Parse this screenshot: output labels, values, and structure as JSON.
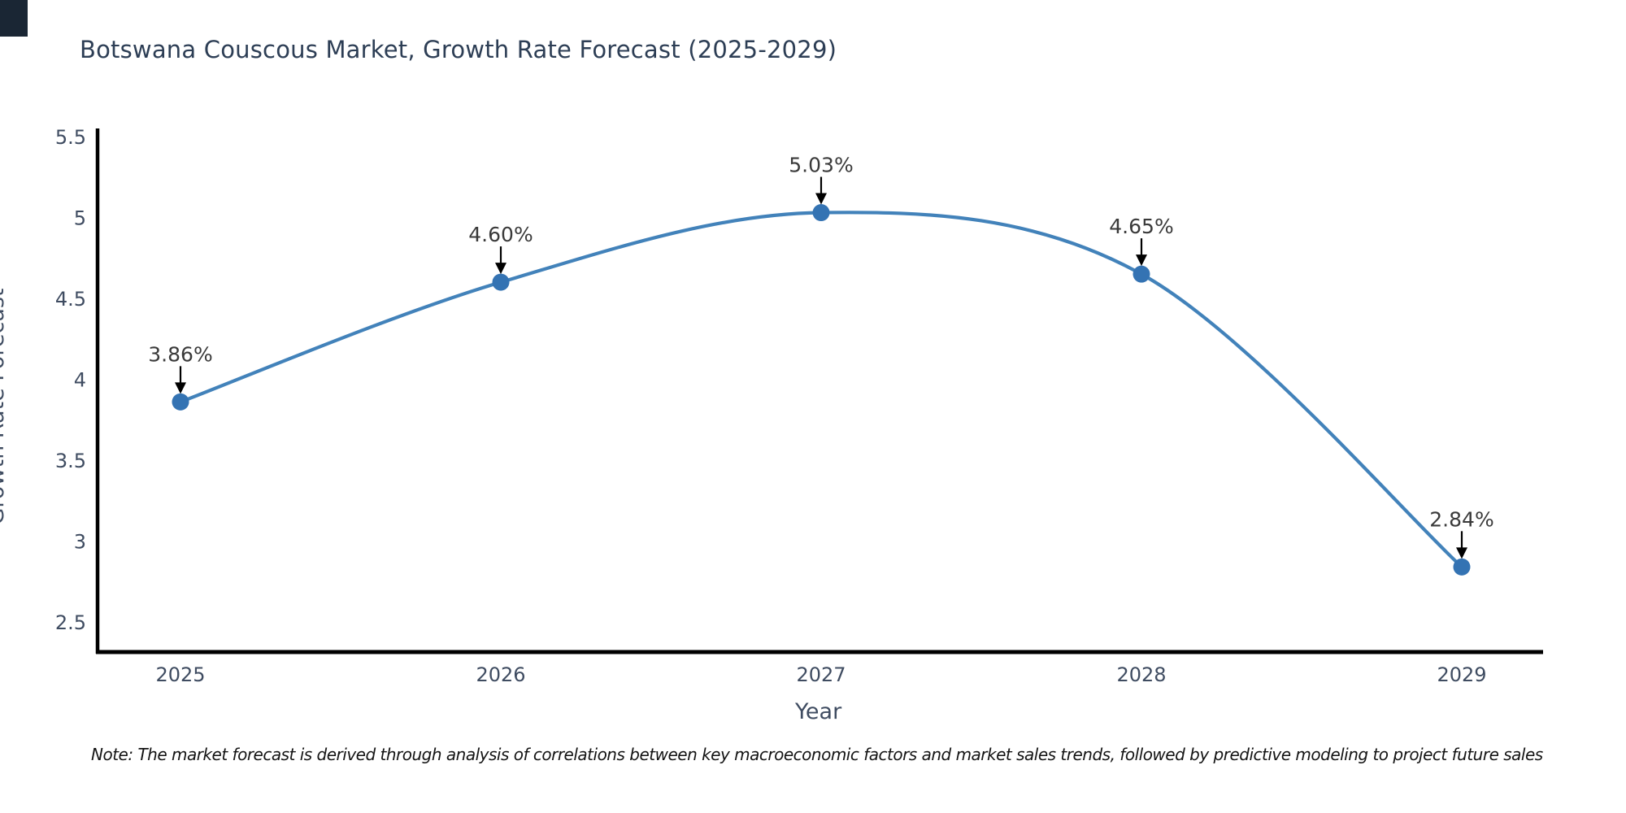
{
  "page": {
    "note": "Note: The market forecast is derived through analysis of correlations between key macroeconomic factors and market sales trends, followed by predictive modeling to project future sales",
    "colors": {
      "title_text": "#2d3e55",
      "axis_text": "#3f4c61",
      "annotation_text": "#3a3a3a",
      "line": "#4282ba",
      "marker": "#3473b3",
      "axis_line": "#000000",
      "arrow": "#000000",
      "corner_square": "#1a2634"
    }
  },
  "chart_data": {
    "type": "line",
    "title": "Botswana Couscous Market, Growth Rate Forecast (2025-2029)",
    "xlabel": "Year",
    "ylabel": "Growth Rate Forecast",
    "categories": [
      "2025",
      "2026",
      "2027",
      "2028",
      "2029"
    ],
    "values": [
      3.86,
      4.6,
      5.03,
      4.65,
      2.84
    ],
    "point_labels": [
      "3.86%",
      "4.60%",
      "5.03%",
      "4.65%",
      "2.84%"
    ],
    "ytick_labels": [
      "5.5",
      "5",
      "4.5",
      "4",
      "3.5",
      "3",
      "2.5"
    ],
    "yticks": [
      5.5,
      5.0,
      4.5,
      4.0,
      3.5,
      3.0,
      2.5
    ],
    "ylim": [
      2.32,
      5.55
    ],
    "grid": false,
    "legend_position": "none",
    "marker_style": "circle",
    "annotation_style": "value labels with downward arrows above each point",
    "curve": "smooth spline"
  }
}
